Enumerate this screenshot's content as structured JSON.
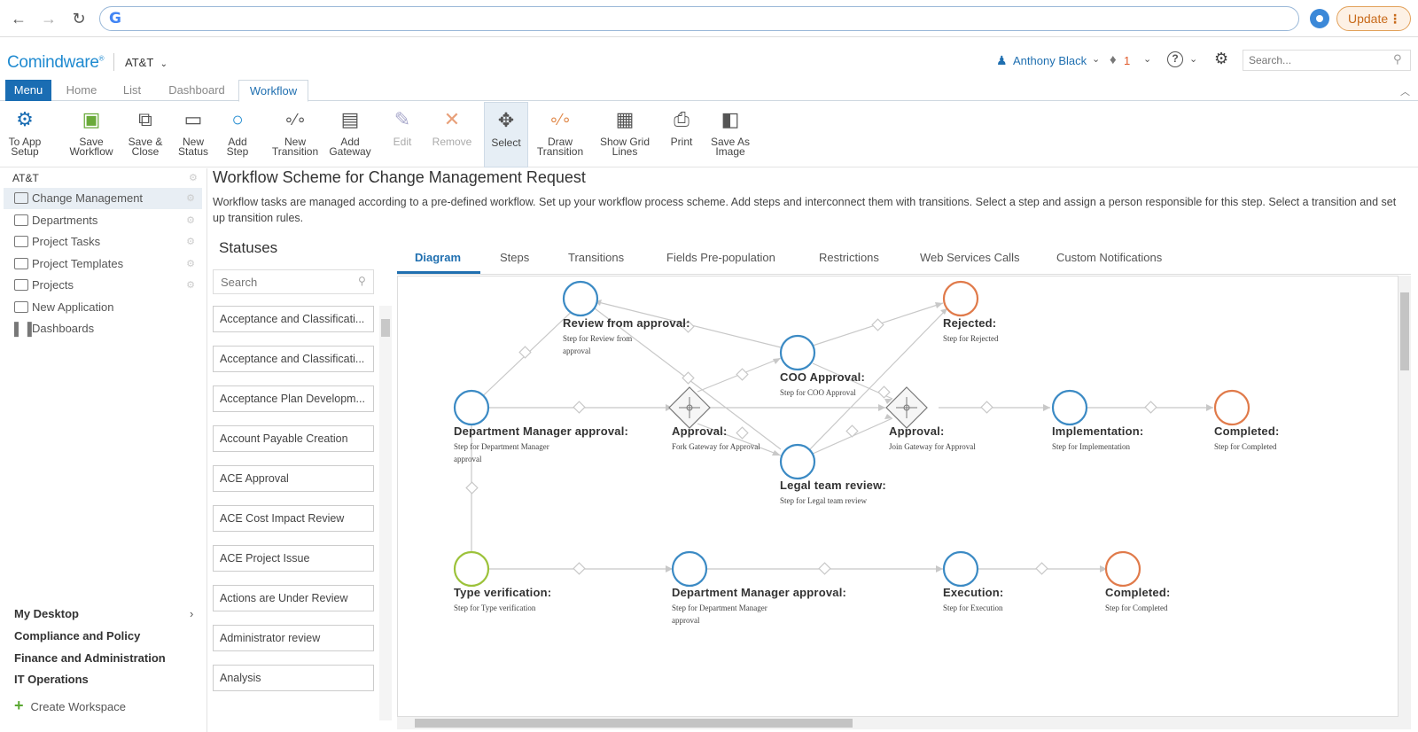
{
  "browser": {
    "update_label": "Update",
    "update_dots": "⋮"
  },
  "header": {
    "logo": "Comindware",
    "logo_mark": "®",
    "org": "AT&T",
    "user": "Anthony Black",
    "notifications": "1",
    "search_placeholder": "Search..."
  },
  "tabs": {
    "menu": "Menu",
    "home": "Home",
    "list": "List",
    "dashboard": "Dashboard",
    "workflow": "Workflow"
  },
  "ribbon": [
    {
      "id": "to-app-setup",
      "label": "To App\nSetup",
      "icon": "gear-arrow-icon",
      "state": "normal"
    },
    {
      "id": "save-workflow",
      "label": "Save\nWorkflow",
      "icon": "floppy-icon",
      "state": "normal"
    },
    {
      "id": "save-close",
      "label": "Save &\nClose",
      "icon": "save-close-icon",
      "state": "normal"
    },
    {
      "id": "new-status",
      "label": "New\nStatus",
      "icon": "rect-plus-icon",
      "state": "normal"
    },
    {
      "id": "add-step",
      "label": "Add\nStep",
      "icon": "circle-plus-icon",
      "state": "normal"
    },
    {
      "id": "new-transition",
      "label": "New\nTransition",
      "icon": "transition-plus-icon",
      "state": "normal"
    },
    {
      "id": "add-gateway",
      "label": "Add\nGateway",
      "icon": "gateway-plus-icon",
      "state": "normal"
    },
    {
      "id": "edit",
      "label": "Edit",
      "icon": "pencil-icon",
      "state": "disabled"
    },
    {
      "id": "remove",
      "label": "Remove",
      "icon": "x-icon",
      "state": "disabled"
    },
    {
      "id": "select",
      "label": "Select",
      "icon": "move-icon",
      "state": "selected"
    },
    {
      "id": "draw-transition",
      "label": "Draw\nTransition",
      "icon": "draw-line-icon",
      "state": "normal"
    },
    {
      "id": "show-grid-lines",
      "label": "Show Grid\nLines",
      "icon": "grid-icon",
      "state": "normal"
    },
    {
      "id": "print",
      "label": "Print",
      "icon": "printer-icon",
      "state": "normal"
    },
    {
      "id": "save-as-image",
      "label": "Save As\nImage",
      "icon": "image-save-icon",
      "state": "normal"
    }
  ],
  "sidebar": {
    "org": "AT&T",
    "items": [
      {
        "label": "Change Management",
        "active": true,
        "gear": true
      },
      {
        "label": "Departments",
        "gear": true
      },
      {
        "label": "Project Tasks",
        "gear": true
      },
      {
        "label": "Project Templates",
        "gear": true
      },
      {
        "label": "Projects",
        "gear": true
      },
      {
        "label": "New Application",
        "gear": false
      },
      {
        "label": "Dashboards",
        "gear": false
      }
    ],
    "workspaces": [
      "My Desktop",
      "Compliance and Policy",
      "Finance and Administration",
      "IT Operations"
    ],
    "create_workspace": "Create Workspace"
  },
  "main": {
    "title": "Workflow Scheme for Change Management Request",
    "description": "Workflow tasks are managed according to a pre-defined workflow. Set up your workflow process scheme. Add steps and interconnect them with transitions. Select a step and assign a person responsible for this step. Select a transition and set up transition rules.",
    "statuses_title": "Statuses",
    "statuses_search_placeholder": "Search",
    "statuses": [
      "Acceptance and Classificati...",
      "Acceptance and Classificati...",
      "Acceptance Plan Developm...",
      "Account Payable Creation",
      "ACE Approval",
      "ACE Cost Impact Review",
      "ACE Project Issue",
      "Actions are Under Review",
      "Administrator review",
      "Analysis"
    ],
    "diagram_tabs": [
      "Diagram",
      "Steps",
      "Transitions",
      "Fields Pre-population",
      "Restrictions",
      "Web Services Calls",
      "Custom Notifications"
    ]
  },
  "diagram": {
    "colors": {
      "step": "#3b8ac4",
      "end": "#e07a4a",
      "start": "#9cc23a",
      "gateway": "#777777",
      "line": "#c8c8c8"
    },
    "nodes": [
      {
        "id": "review",
        "title": "Review from approval:",
        "sub": "Step for Review from approval",
        "kind": "step"
      },
      {
        "id": "rejected",
        "title": "Rejected:",
        "sub": "Step for Rejected",
        "kind": "end"
      },
      {
        "id": "coo",
        "title": "COO Approval:",
        "sub": "Step for COO Approval",
        "kind": "step"
      },
      {
        "id": "dma1",
        "title": "Department Manager approval:",
        "sub": "Step for Department Manager approval",
        "kind": "step"
      },
      {
        "id": "fork",
        "title": "Approval:",
        "sub": "Fork Gateway for Approval",
        "kind": "gateway"
      },
      {
        "id": "join",
        "title": "Approval:",
        "sub": "Join Gateway for Approval",
        "kind": "gateway"
      },
      {
        "id": "impl",
        "title": "Implementation:",
        "sub": "Step for Implementation",
        "kind": "step"
      },
      {
        "id": "completed1",
        "title": "Completed:",
        "sub": "Step for Completed",
        "kind": "end"
      },
      {
        "id": "legal",
        "title": "Legal team review:",
        "sub": "Step for Legal team review",
        "kind": "step"
      },
      {
        "id": "typever",
        "title": "Type verification:",
        "sub": "Step for Type verification",
        "kind": "start"
      },
      {
        "id": "dma2",
        "title": "Department Manager approval:",
        "sub": "Step for Department Manager approval",
        "kind": "step"
      },
      {
        "id": "exec",
        "title": "Execution:",
        "sub": "Step for Execution",
        "kind": "step"
      },
      {
        "id": "completed2",
        "title": "Completed:",
        "sub": "Step for Completed",
        "kind": "end"
      }
    ]
  }
}
